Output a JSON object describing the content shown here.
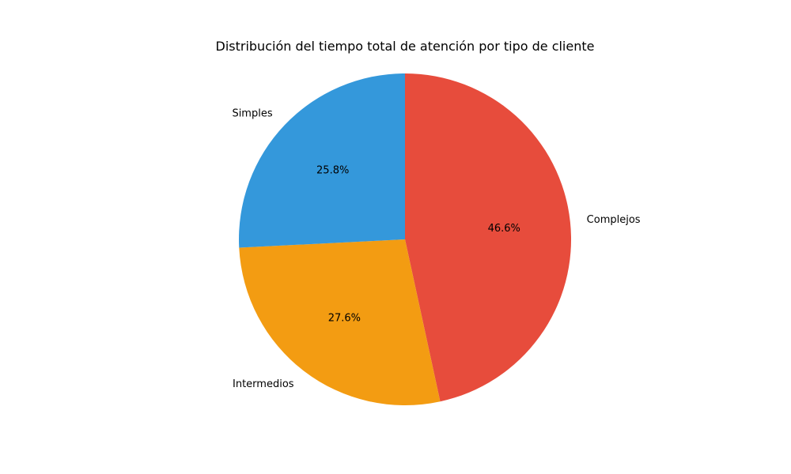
{
  "chart_data": {
    "type": "pie",
    "title": "Distribución del tiempo total de atención por tipo de cliente",
    "start_angle_deg": 90,
    "direction": "clockwise",
    "slices": [
      {
        "label": "Complejos",
        "value": 46.6,
        "pct_label": "46.6%",
        "color": "#e74c3c"
      },
      {
        "label": "Intermedios",
        "value": 27.6,
        "pct_label": "27.6%",
        "color": "#f39c12"
      },
      {
        "label": "Simples",
        "value": 25.8,
        "pct_label": "25.8%",
        "color": "#3498db"
      }
    ]
  }
}
